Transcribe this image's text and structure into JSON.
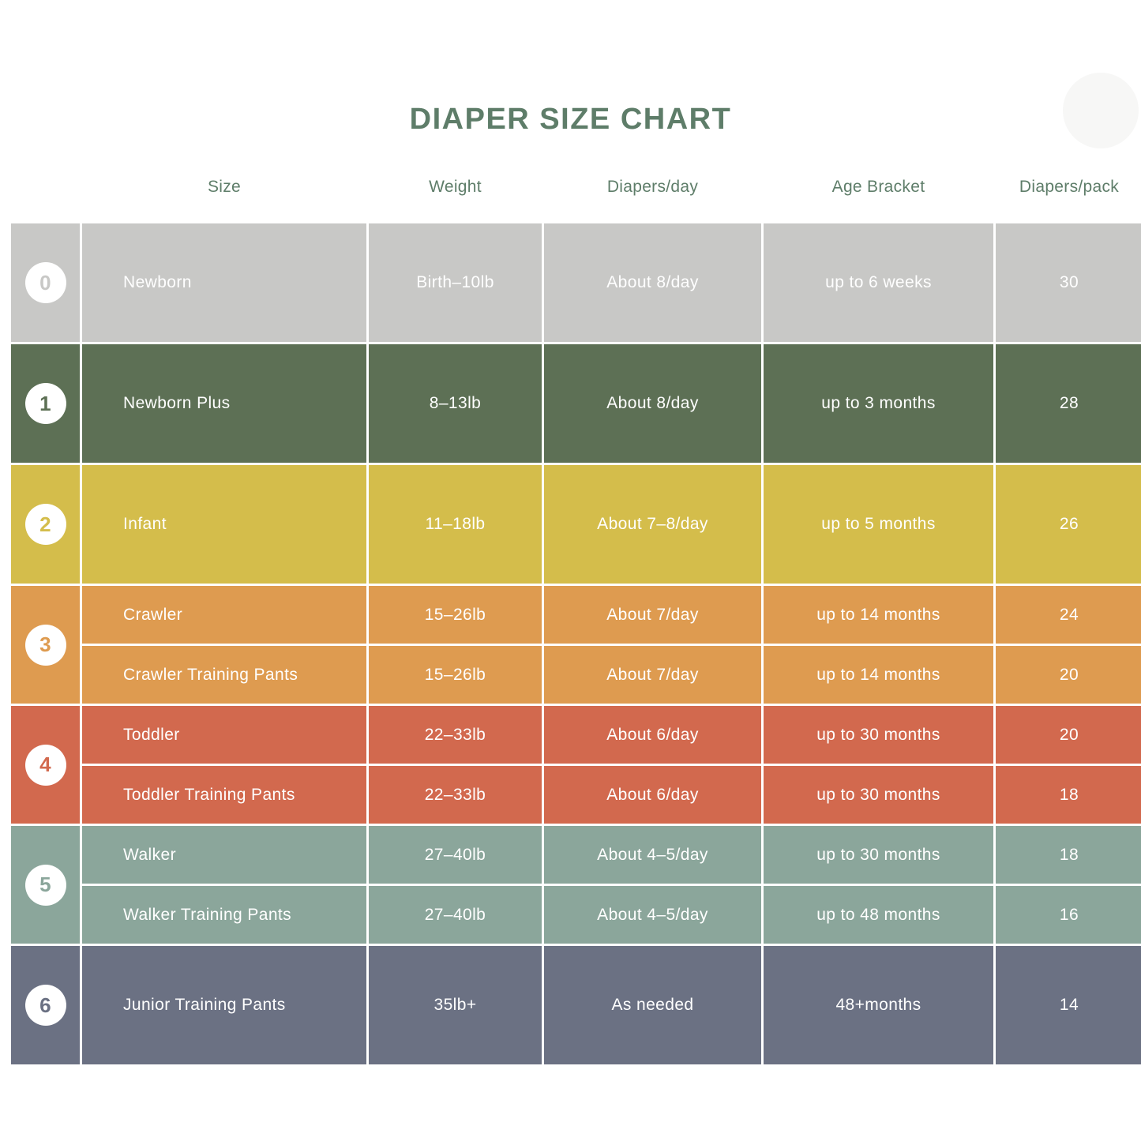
{
  "chart_data": {
    "type": "table",
    "title": "DIAPER SIZE CHART",
    "accent_color": "#5e7d69",
    "columns": [
      "Size",
      "Weight",
      "Diapers/day",
      "Age Bracket",
      "Diapers/pack"
    ],
    "groups": [
      {
        "size": "0",
        "color": "#c8c8c6",
        "rows": [
          {
            "name": "Newborn",
            "weight": "Birth–10lb",
            "per_day": "About 8/day",
            "age": "up to 6 weeks",
            "per_pack": "30"
          }
        ]
      },
      {
        "size": "1",
        "color": "#5d7055",
        "rows": [
          {
            "name": "Newborn Plus",
            "weight": "8–13lb",
            "per_day": "About 8/day",
            "age": "up to 3 months",
            "per_pack": "28"
          }
        ]
      },
      {
        "size": "2",
        "color": "#d4bd4b",
        "rows": [
          {
            "name": "Infant",
            "weight": "11–18lb",
            "per_day": "About 7–8/day",
            "age": "up to 5 months",
            "per_pack": "26"
          }
        ]
      },
      {
        "size": "3",
        "color": "#de9b50",
        "rows": [
          {
            "name": "Crawler",
            "weight": "15–26lb",
            "per_day": "About 7/day",
            "age": "up to 14 months",
            "per_pack": "24"
          },
          {
            "name": "Crawler Training Pants",
            "weight": "15–26lb",
            "per_day": "About 7/day",
            "age": "up to 14 months",
            "per_pack": "20"
          }
        ]
      },
      {
        "size": "4",
        "color": "#d2694e",
        "rows": [
          {
            "name": "Toddler",
            "weight": "22–33lb",
            "per_day": "About 6/day",
            "age": "up to 30 months",
            "per_pack": "20"
          },
          {
            "name": "Toddler Training Pants",
            "weight": "22–33lb",
            "per_day": "About 6/day",
            "age": "up to 30 months",
            "per_pack": "18"
          }
        ]
      },
      {
        "size": "5",
        "color": "#8ba69b",
        "rows": [
          {
            "name": "Walker",
            "weight": "27–40lb",
            "per_day": "About 4–5/day",
            "age": "up to 30 months",
            "per_pack": "18"
          },
          {
            "name": "Walker Training Pants",
            "weight": "27–40lb",
            "per_day": "About 4–5/day",
            "age": "up to 48 months",
            "per_pack": "16"
          }
        ]
      },
      {
        "size": "6",
        "color": "#6b7183",
        "rows": [
          {
            "name": "Junior Training Pants",
            "weight": "35lb+",
            "per_day": "As needed",
            "age": "48+months",
            "per_pack": "14"
          }
        ]
      }
    ]
  }
}
